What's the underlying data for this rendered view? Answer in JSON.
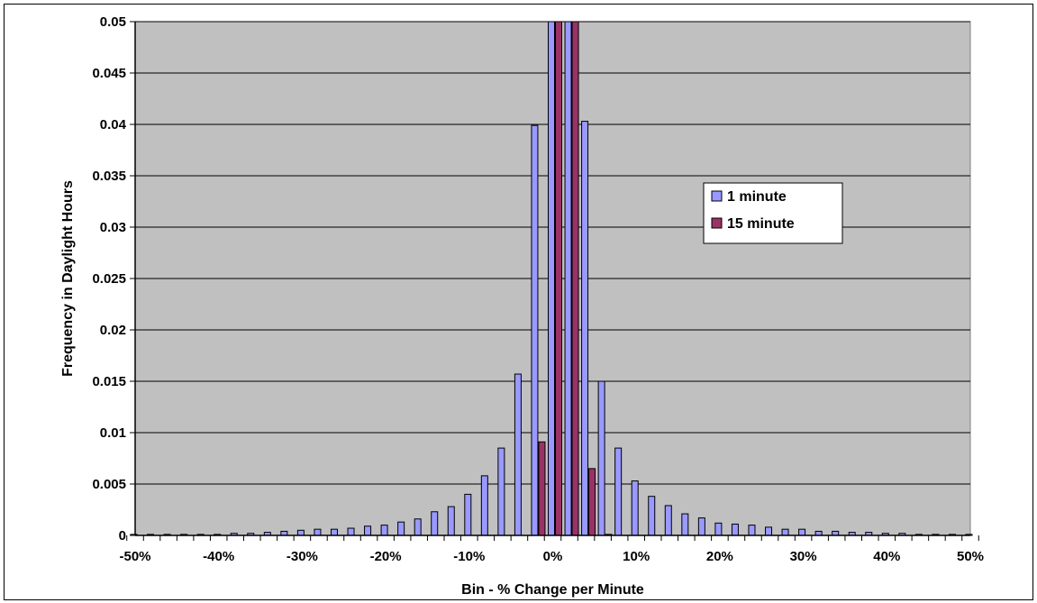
{
  "chart_data": {
    "type": "bar",
    "xlabel": "Bin - % Change per Minute",
    "ylabel": "Frequency in Daylight Hours",
    "ylim": [
      0,
      0.05
    ],
    "y_ticks": [
      "0",
      "0.005",
      "0.01",
      "0.015",
      "0.02",
      "0.025",
      "0.03",
      "0.035",
      "0.04",
      "0.045",
      "0.05"
    ],
    "x_tick_labels": [
      "-50%",
      "-40%",
      "-30%",
      "-20%",
      "-10%",
      "0%",
      "10%",
      "20%",
      "30%",
      "40%",
      "50%"
    ],
    "x_bins": [
      -50,
      -48,
      -46,
      -44,
      -42,
      -40,
      -38,
      -36,
      -34,
      -32,
      -30,
      -28,
      -26,
      -24,
      -22,
      -20,
      -18,
      -16,
      -14,
      -12,
      -10,
      -8,
      -6,
      -4,
      -2,
      0,
      2,
      4,
      6,
      8,
      10,
      12,
      14,
      16,
      18,
      20,
      22,
      24,
      26,
      28,
      30,
      32,
      34,
      36,
      38,
      40,
      42,
      44,
      46,
      48,
      50
    ],
    "grid": true,
    "plot_background": "#c0c0c0",
    "legend_position": "right-center",
    "series": [
      {
        "name": "1 minute",
        "color": "#9999ff",
        "values": [
          0.0001,
          0.0001,
          0.0001,
          0.0001,
          0.0001,
          0.0001,
          0.0002,
          0.0002,
          0.0003,
          0.0004,
          0.0005,
          0.0006,
          0.0006,
          0.0007,
          0.0009,
          0.001,
          0.0013,
          0.0016,
          0.0023,
          0.0028,
          0.004,
          0.0058,
          0.0085,
          0.0157,
          0.0399,
          0.05,
          0.05,
          0.0403,
          0.015,
          0.0085,
          0.0053,
          0.0038,
          0.0029,
          0.0021,
          0.0017,
          0.0012,
          0.0011,
          0.001,
          0.0008,
          0.0006,
          0.0006,
          0.0004,
          0.0004,
          0.0003,
          0.0003,
          0.0002,
          0.0002,
          0.0001,
          0.0001,
          0.0001,
          0.0001
        ]
      },
      {
        "name": "15 minute",
        "color": "#993366",
        "values": [
          0,
          0,
          0,
          0,
          0,
          0,
          0,
          0,
          0,
          0,
          0,
          0,
          0,
          0,
          0,
          0,
          0,
          0,
          0,
          0,
          0,
          0,
          0,
          0,
          0.0091,
          0.05,
          0.05,
          0.0065,
          0.0001,
          0,
          0,
          0,
          0,
          0,
          0,
          0,
          0,
          0,
          0,
          0,
          0,
          0,
          0,
          0,
          0,
          0,
          0,
          0,
          0,
          0,
          0
        ]
      }
    ]
  }
}
